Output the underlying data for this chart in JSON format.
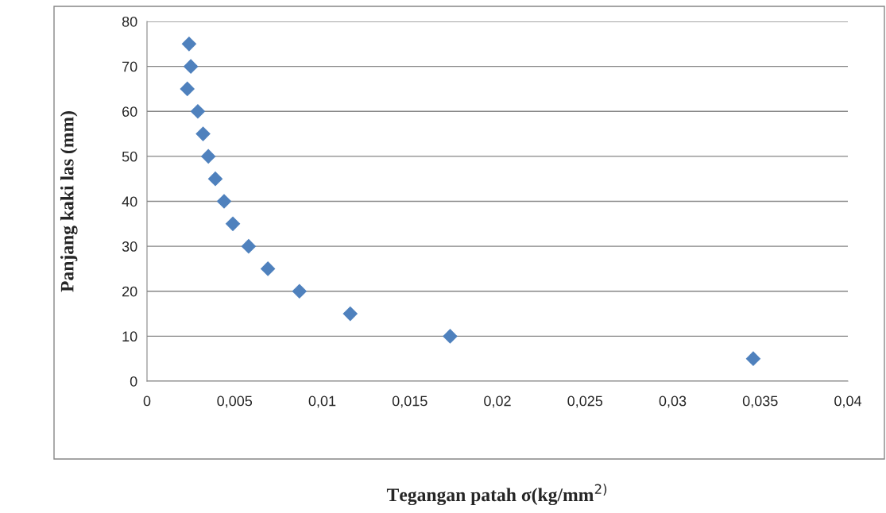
{
  "chart_data": {
    "type": "scatter",
    "xlabel": "Tegangan patah σ(kg/mm$^{2)}$",
    "ylabel": "Panjang kaki las (mm)",
    "series": [
      {
        "color": "#4f81bd",
        "x": [
          0.0024,
          0.0025,
          0.0023,
          0.0029,
          0.0032,
          0.0035,
          0.0039,
          0.0044,
          0.0049,
          0.0058,
          0.0069,
          0.0087,
          0.0116,
          0.0173,
          0.0346
        ],
        "values": [
          75,
          70,
          65,
          60,
          55,
          50,
          45,
          40,
          35,
          30,
          25,
          20,
          15,
          10,
          5
        ]
      }
    ],
    "marker": "diamond",
    "xlim": [
      0,
      0.04
    ],
    "xticks": [
      0,
      {
        "value": 0.005,
        "label": "0,005"
      },
      {
        "value": 0.01,
        "label": "0,01"
      },
      {
        "value": 0.015,
        "label": "0,015"
      },
      {
        "value": 0.02,
        "label": "0,02"
      },
      {
        "value": 0.025,
        "label": "0,025"
      },
      {
        "value": 0.03,
        "label": "0,03"
      },
      {
        "value": 0.035,
        "label": "0,035"
      },
      {
        "value": 0.04,
        "label": "0,04"
      }
    ],
    "ylim": [
      0,
      80
    ],
    "yticks": [
      0,
      10,
      20,
      30,
      40,
      50,
      60,
      70,
      80
    ],
    "grid": "y",
    "legend": false
  }
}
